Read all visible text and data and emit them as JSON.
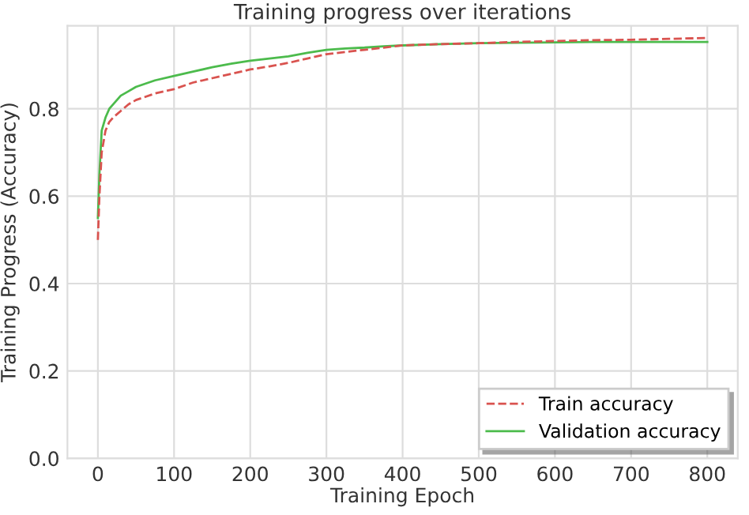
{
  "chart_data": {
    "type": "line",
    "title": "Training progress over iterations",
    "xlabel": "Training Epoch",
    "ylabel": "Training Progress (Accuracy)",
    "xlim": [
      -40,
      840
    ],
    "ylim": [
      0,
      0.99
    ],
    "xticks": [
      0,
      100,
      200,
      300,
      400,
      500,
      600,
      700,
      800
    ],
    "yticks": [
      {
        "value": 0,
        "label": "0.0"
      },
      0.2,
      0.4,
      0.6,
      0.8
    ],
    "grid": true,
    "legend": "bottom right",
    "marker": "none",
    "series": [
      {
        "name": "Train accuracy",
        "color": "#d9534f",
        "line_style": "dashed",
        "x": [
          0,
          2,
          5,
          10,
          15,
          20,
          30,
          40,
          50,
          75,
          100,
          125,
          150,
          175,
          200,
          225,
          250,
          275,
          300,
          325,
          350,
          375,
          400,
          450,
          500,
          550,
          600,
          650,
          700,
          750,
          800
        ],
        "values": [
          0.5,
          0.6,
          0.7,
          0.75,
          0.77,
          0.78,
          0.795,
          0.81,
          0.82,
          0.835,
          0.845,
          0.86,
          0.87,
          0.88,
          0.89,
          0.897,
          0.905,
          0.915,
          0.925,
          0.93,
          0.935,
          0.94,
          0.945,
          0.948,
          0.95,
          0.953,
          0.955,
          0.957,
          0.958,
          0.96,
          0.962
        ]
      },
      {
        "name": "Validation accuracy",
        "color": "#4cbb4c",
        "line_style": "solid",
        "x": [
          0,
          2,
          5,
          10,
          15,
          20,
          30,
          40,
          50,
          75,
          100,
          125,
          150,
          175,
          200,
          225,
          250,
          275,
          300,
          325,
          350,
          375,
          400,
          450,
          500,
          550,
          600,
          650,
          700,
          750,
          800
        ],
        "values": [
          0.55,
          0.65,
          0.75,
          0.78,
          0.8,
          0.81,
          0.83,
          0.84,
          0.85,
          0.865,
          0.875,
          0.885,
          0.895,
          0.903,
          0.91,
          0.915,
          0.92,
          0.928,
          0.935,
          0.938,
          0.94,
          0.943,
          0.945,
          0.948,
          0.95,
          0.951,
          0.952,
          0.953,
          0.953,
          0.953,
          0.953
        ]
      }
    ]
  }
}
